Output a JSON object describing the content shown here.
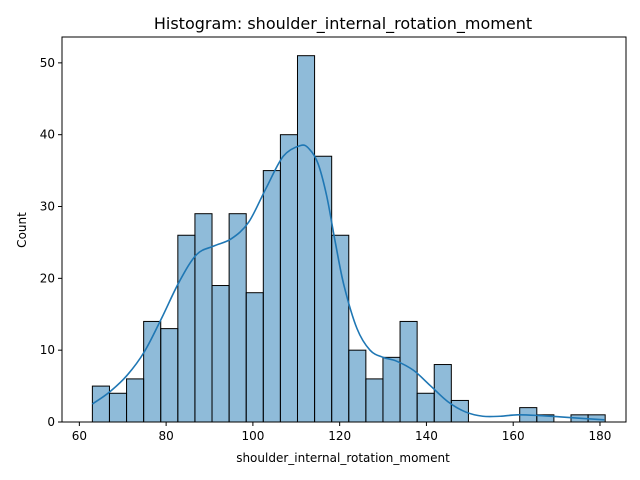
{
  "chart_data": {
    "type": "bar",
    "subtype": "histogram",
    "title": "Histogram: shoulder_internal_rotation_moment",
    "xlabel": "shoulder_internal_rotation_moment",
    "ylabel": "Count",
    "xlim": [
      56,
      186
    ],
    "ylim": [
      0,
      53.6
    ],
    "xticks": [
      60,
      80,
      100,
      120,
      140,
      160,
      180
    ],
    "yticks": [
      0,
      10,
      20,
      30,
      40,
      50
    ],
    "bin_start": 63,
    "bin_width": 3.94,
    "counts": [
      5,
      4,
      6,
      14,
      13,
      26,
      29,
      19,
      29,
      18,
      35,
      40,
      51,
      37,
      26,
      10,
      6,
      9,
      14,
      4,
      8,
      3,
      0,
      0,
      0,
      2,
      1,
      0,
      1,
      1
    ],
    "kde": {
      "x": [
        63,
        67,
        71,
        75,
        79,
        83,
        87,
        91,
        95,
        99,
        103,
        107,
        111,
        113,
        115,
        117,
        119,
        121,
        124,
        127,
        130,
        133,
        137,
        141,
        145,
        149,
        153,
        157,
        161,
        166,
        171,
        176,
        181
      ],
      "y": [
        2.5,
        4.2,
        6.5,
        9.8,
        14.5,
        19.5,
        23.3,
        24.5,
        25.5,
        27.8,
        32.5,
        37.0,
        38.5,
        38.0,
        36.0,
        31.5,
        25.0,
        19.0,
        13.0,
        10.0,
        9.0,
        8.5,
        7.2,
        5.0,
        2.8,
        1.4,
        0.8,
        0.8,
        1.0,
        0.9,
        0.7,
        0.5,
        0.3
      ]
    },
    "grid": false,
    "legend": "none",
    "colors": {
      "bar": "#1f77b4",
      "kde": "#1f77b4"
    }
  }
}
